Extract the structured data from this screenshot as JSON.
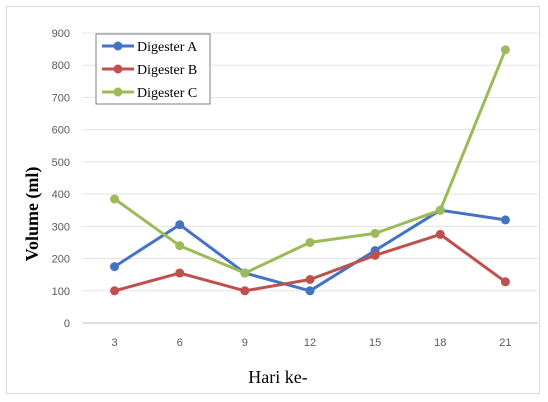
{
  "chart_data": {
    "type": "line",
    "xlabel": "Hari ke-",
    "ylabel": "Volume (ml)",
    "x": [
      3,
      6,
      9,
      12,
      15,
      18,
      21
    ],
    "ylim": [
      0,
      900
    ],
    "yticks": [
      0,
      100,
      200,
      300,
      400,
      500,
      600,
      700,
      800,
      900
    ],
    "grid": true,
    "legend_position": "top-left",
    "series": [
      {
        "name": "Digester A",
        "color": "#4472C4",
        "values": [
          175,
          305,
          155,
          100,
          225,
          350,
          320
        ]
      },
      {
        "name": "Digester B",
        "color": "#C0504D",
        "values": [
          100,
          155,
          100,
          135,
          210,
          275,
          128
        ]
      },
      {
        "name": "Digester C",
        "color": "#9BBB59",
        "values": [
          385,
          240,
          155,
          250,
          278,
          350,
          848
        ]
      }
    ]
  }
}
